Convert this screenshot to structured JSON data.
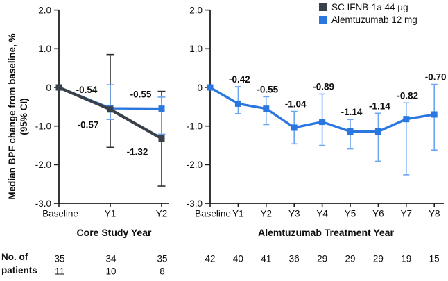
{
  "labels": {
    "no_of": "No. of",
    "patients": "patients"
  },
  "chart_data": {
    "type": "line",
    "ylabel": "Median BPF change from baseline, %",
    "ylabel2": "(95% CI)",
    "ylim": [
      -3.0,
      2.0
    ],
    "yticks": [
      2.0,
      1.0,
      0,
      -1.0,
      -2.0,
      -3.0
    ],
    "ytick_labels": [
      "2.0",
      "1.0",
      "0",
      "-1.0",
      "-2.0",
      "-3.0"
    ],
    "grid": false,
    "legend_position": "top-right",
    "legend": [
      {
        "label": "SC IFNB-1a 44 µg",
        "color": "#3a4049"
      },
      {
        "label": "Alemtuzumab 12 mg",
        "color": "#2b77e0"
      }
    ],
    "panels": [
      {
        "xlabel": "Core Study Year",
        "categories": [
          "Baseline",
          "Y1",
          "Y2"
        ],
        "series": [
          {
            "name": "SC IFNB-1a 44 µg",
            "color": "#3a4049",
            "err_color": "#2d3136",
            "values": [
              0,
              -0.57,
              -1.32
            ],
            "ci_high": [
              null,
              0.85,
              -0.1
            ],
            "ci_low": [
              null,
              -1.55,
              -2.55
            ],
            "labels": [
              null,
              "-0.57",
              "-1.32"
            ]
          },
          {
            "name": "Alemtuzumab 12 mg",
            "color": "#2b77e0",
            "err_color": "#6aa6f2",
            "values": [
              0,
              -0.54,
              -0.55
            ],
            "ci_high": [
              null,
              0.07,
              -0.25
            ],
            "ci_low": [
              null,
              -0.83,
              -1.21
            ],
            "labels": [
              null,
              "-0.54",
              "-0.55"
            ]
          }
        ],
        "patients": [
          {
            "color": "#2b77e0",
            "values": [
              "35",
              "34",
              "35"
            ]
          },
          {
            "color": "#50555c",
            "values": [
              "11",
              "10",
              "8"
            ]
          }
        ]
      },
      {
        "xlabel": "Alemtuzumab Treatment Year",
        "categories": [
          "Baseline",
          "Y1",
          "Y2",
          "Y3",
          "Y4",
          "Y5",
          "Y6",
          "Y7",
          "Y8"
        ],
        "series": [
          {
            "name": "Alemtuzumab 12 mg",
            "color": "#2b77e0",
            "err_color": "#6aa6f2",
            "values": [
              0,
              -0.42,
              -0.55,
              -1.04,
              -0.89,
              -1.14,
              -1.14,
              -0.82,
              -0.7
            ],
            "ci_high": [
              null,
              0.02,
              -0.24,
              -0.62,
              -0.17,
              -0.83,
              -0.67,
              -0.4,
              0.08
            ],
            "ci_low": [
              null,
              -0.68,
              -0.96,
              -1.46,
              -1.5,
              -1.59,
              -1.91,
              -2.26,
              -1.62
            ],
            "labels": [
              null,
              "-0.42",
              "-0.55",
              "-1.04",
              "-0.89",
              "-1.14",
              "-1.14",
              "-0.82",
              "-0.70"
            ]
          }
        ],
        "patients": [
          {
            "color": "#2b77e0",
            "values": [
              "42",
              "40",
              "41",
              "36",
              "29",
              "29",
              "29",
              "19",
              "15"
            ]
          }
        ]
      }
    ]
  }
}
